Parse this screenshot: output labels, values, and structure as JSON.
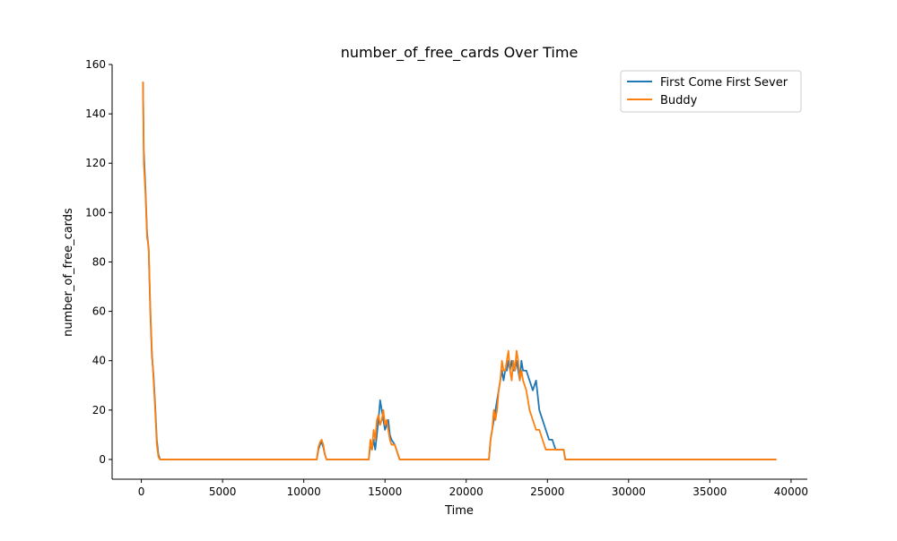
{
  "chart_data": {
    "type": "line",
    "title": "number_of_free_cards Over Time",
    "xlabel": "Time",
    "ylabel": "number_of_free_cards",
    "xlim": [
      -1800,
      41000
    ],
    "ylim": [
      -8,
      160
    ],
    "xticks": [
      0,
      5000,
      10000,
      15000,
      20000,
      25000,
      30000,
      35000,
      40000
    ],
    "yticks": [
      0,
      20,
      40,
      60,
      80,
      100,
      120,
      140,
      160
    ],
    "grid": false,
    "legend_position": "top-right",
    "series": [
      {
        "name": "First Come First Sever",
        "color": "#1f77b4",
        "x": [
          100,
          150,
          250,
          350,
          450,
          550,
          650,
          750,
          850,
          950,
          1050,
          1150,
          1300,
          10800,
          10900,
          11000,
          11100,
          11200,
          11300,
          11400,
          11600,
          14000,
          14100,
          14200,
          14300,
          14400,
          14500,
          14600,
          14700,
          14800,
          14900,
          15000,
          15100,
          15200,
          15300,
          15400,
          15600,
          15800,
          15900,
          21400,
          21500,
          21600,
          21700,
          21800,
          21900,
          22000,
          22100,
          22200,
          22300,
          22400,
          22500,
          22600,
          22700,
          22800,
          22900,
          23000,
          23100,
          23200,
          23300,
          23400,
          23500,
          23700,
          23900,
          24100,
          24300,
          24500,
          24700,
          24900,
          25100,
          25300,
          25500,
          26000,
          26100,
          39100
        ],
        "y": [
          153,
          125,
          110,
          92,
          85,
          60,
          42,
          34,
          22,
          8,
          2,
          0,
          0,
          0,
          4,
          6,
          7,
          5,
          2,
          0,
          0,
          0,
          6,
          4,
          8,
          4,
          10,
          16,
          24,
          20,
          16,
          12,
          14,
          16,
          10,
          8,
          6,
          2,
          0,
          0,
          8,
          12,
          16,
          20,
          24,
          28,
          32,
          36,
          32,
          36,
          36,
          40,
          36,
          40,
          36,
          36,
          40,
          36,
          32,
          40,
          36,
          36,
          32,
          28,
          32,
          20,
          16,
          12,
          8,
          8,
          4,
          4,
          0,
          0
        ]
      },
      {
        "name": "Buddy",
        "color": "#ff7f0e",
        "x": [
          100,
          150,
          250,
          350,
          450,
          550,
          650,
          750,
          850,
          950,
          1050,
          1150,
          1300,
          10800,
          10900,
          11000,
          11100,
          11200,
          11300,
          11400,
          11600,
          14000,
          14100,
          14200,
          14300,
          14400,
          14500,
          14600,
          14700,
          14800,
          14900,
          15000,
          15100,
          15200,
          15300,
          15400,
          15600,
          15800,
          15900,
          21400,
          21500,
          21600,
          21700,
          21800,
          21900,
          22000,
          22100,
          22200,
          22300,
          22400,
          22500,
          22600,
          22700,
          22800,
          22900,
          23000,
          23100,
          23200,
          23300,
          23400,
          23500,
          23700,
          23900,
          24100,
          24300,
          24500,
          24700,
          24900,
          25100,
          25300,
          25500,
          26000,
          26100,
          39100
        ],
        "y": [
          153,
          120,
          108,
          90,
          86,
          62,
          44,
          32,
          20,
          6,
          1,
          0,
          0,
          0,
          5,
          7,
          8,
          6,
          2,
          0,
          0,
          0,
          8,
          4,
          12,
          8,
          16,
          18,
          14,
          16,
          20,
          14,
          16,
          12,
          8,
          6,
          6,
          2,
          0,
          0,
          8,
          12,
          20,
          16,
          20,
          28,
          32,
          40,
          36,
          36,
          40,
          44,
          36,
          32,
          40,
          36,
          44,
          40,
          32,
          36,
          32,
          28,
          20,
          16,
          12,
          12,
          8,
          4,
          4,
          4,
          4,
          4,
          0,
          0
        ]
      }
    ]
  }
}
